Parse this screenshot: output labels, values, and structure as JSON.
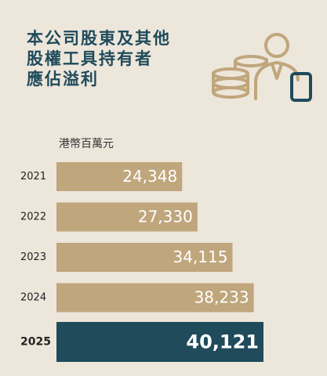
{
  "chart_data": {
    "type": "bar",
    "title": [
      "本公司股東及其他",
      "股權工具持有者",
      "應佔溢利"
    ],
    "unit_label": "港幣百萬元",
    "categories": [
      "2021",
      "2022",
      "2023",
      "2024",
      "2025"
    ],
    "values": [
      24348,
      27330,
      34115,
      38233,
      40121
    ],
    "value_labels": [
      "24,348",
      "27,330",
      "34,115",
      "38,233",
      "40,121"
    ],
    "colors": [
      "#c0a67c",
      "#c0a67c",
      "#c0a67c",
      "#c0a67c",
      "#1f4b5b"
    ]
  }
}
